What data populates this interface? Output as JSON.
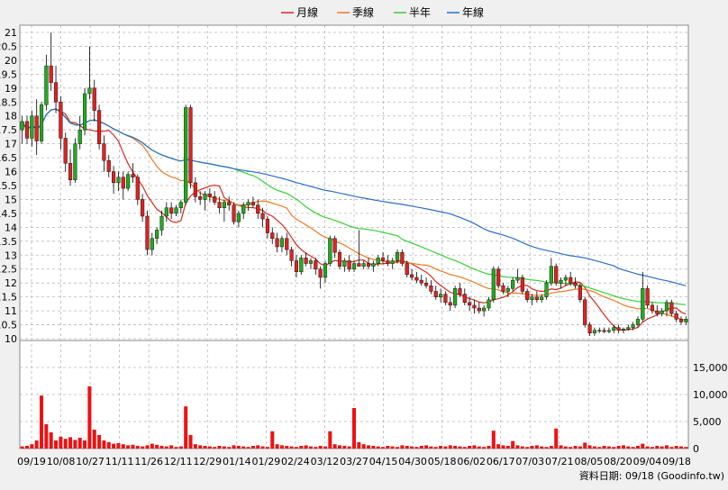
{
  "chart_data": {
    "type": "candlestick",
    "legend": [
      {
        "label": "月線",
        "color": "#d62a1e"
      },
      {
        "label": "季線",
        "color": "#ef7a24"
      },
      {
        "label": "半年",
        "color": "#36d036"
      },
      {
        "label": "年線",
        "color": "#2a6ecf"
      }
    ],
    "x_tick_labels": [
      "09/19",
      "10/08",
      "10/27",
      "11/11",
      "11/26",
      "12/11",
      "12/29",
      "01/14",
      "01/29",
      "02/24",
      "03/12",
      "03/27",
      "04/15",
      "04/30",
      "05/18",
      "06/02",
      "06/17",
      "07/03",
      "07/21",
      "08/05",
      "08/20",
      "09/04",
      "09/18"
    ],
    "price_axis": {
      "ticks": [
        "21",
        "20.5",
        "20",
        "19.5",
        "19",
        "18.5",
        "18",
        "17.5",
        "17",
        "16.5",
        "16",
        "15.5",
        "15",
        "14.5",
        "14",
        "13.5",
        "13",
        "12.5",
        "12",
        "11.5",
        "11",
        "10.5",
        "10"
      ],
      "ylim": [
        10,
        21
      ]
    },
    "volume_axis": {
      "ticks": [
        "15,000",
        "10,000",
        "5,000",
        "0"
      ],
      "ylim": [
        0,
        20000
      ]
    },
    "source_note": "資料日期: 09/18  (Goodinfo.tw)",
    "up_color": "#22aa22",
    "down_color": "#dd2222",
    "volume_color": "#ee1111",
    "candles": [
      {
        "o": 17.5,
        "h": 18.0,
        "l": 17.0,
        "c": 17.8
      },
      {
        "o": 17.8,
        "h": 18.0,
        "l": 17.0,
        "c": 17.2
      },
      {
        "o": 17.2,
        "h": 18.2,
        "l": 16.9,
        "c": 18.0
      },
      {
        "o": 18.0,
        "h": 18.6,
        "l": 16.6,
        "c": 17.1
      },
      {
        "o": 17.1,
        "h": 18.5,
        "l": 17.0,
        "c": 18.4
      },
      {
        "o": 18.4,
        "h": 20.2,
        "l": 18.2,
        "c": 19.8
      },
      {
        "o": 19.8,
        "h": 21.0,
        "l": 18.9,
        "c": 19.2
      },
      {
        "o": 19.2,
        "h": 19.8,
        "l": 18.1,
        "c": 18.5
      },
      {
        "o": 18.5,
        "h": 18.7,
        "l": 16.8,
        "c": 17.2
      },
      {
        "o": 17.2,
        "h": 17.4,
        "l": 16.0,
        "c": 16.3
      },
      {
        "o": 16.3,
        "h": 16.8,
        "l": 15.5,
        "c": 15.7
      },
      {
        "o": 15.7,
        "h": 17.2,
        "l": 15.6,
        "c": 17.0
      },
      {
        "o": 17.0,
        "h": 18.0,
        "l": 16.8,
        "c": 17.5
      },
      {
        "o": 17.5,
        "h": 19.0,
        "l": 17.3,
        "c": 18.8
      },
      {
        "o": 18.8,
        "h": 20.5,
        "l": 18.6,
        "c": 19.0
      },
      {
        "o": 19.0,
        "h": 19.3,
        "l": 17.8,
        "c": 18.2
      },
      {
        "o": 18.2,
        "h": 18.4,
        "l": 16.8,
        "c": 17.0
      },
      {
        "o": 17.0,
        "h": 17.3,
        "l": 16.0,
        "c": 16.4
      },
      {
        "o": 16.4,
        "h": 16.6,
        "l": 15.8,
        "c": 16.0
      },
      {
        "o": 16.0,
        "h": 16.2,
        "l": 15.2,
        "c": 15.6
      },
      {
        "o": 15.6,
        "h": 16.0,
        "l": 15.3,
        "c": 15.8
      },
      {
        "o": 15.8,
        "h": 16.0,
        "l": 15.0,
        "c": 15.4
      },
      {
        "o": 15.4,
        "h": 16.0,
        "l": 15.3,
        "c": 15.9
      },
      {
        "o": 15.9,
        "h": 16.3,
        "l": 15.6,
        "c": 15.8
      },
      {
        "o": 15.8,
        "h": 15.9,
        "l": 14.8,
        "c": 15.0
      },
      {
        "o": 15.0,
        "h": 15.2,
        "l": 14.2,
        "c": 14.4
      },
      {
        "o": 14.4,
        "h": 14.6,
        "l": 13.0,
        "c": 13.2
      },
      {
        "o": 13.2,
        "h": 13.8,
        "l": 13.0,
        "c": 13.6
      },
      {
        "o": 13.6,
        "h": 14.0,
        "l": 13.4,
        "c": 13.9
      },
      {
        "o": 13.9,
        "h": 14.6,
        "l": 13.7,
        "c": 14.4
      },
      {
        "o": 14.4,
        "h": 14.9,
        "l": 14.2,
        "c": 14.7
      },
      {
        "o": 14.7,
        "h": 14.9,
        "l": 14.3,
        "c": 14.5
      },
      {
        "o": 14.5,
        "h": 14.8,
        "l": 14.4,
        "c": 14.7
      },
      {
        "o": 14.7,
        "h": 15.0,
        "l": 14.5,
        "c": 14.9
      },
      {
        "o": 14.9,
        "h": 18.4,
        "l": 14.8,
        "c": 18.3
      },
      {
        "o": 18.3,
        "h": 18.4,
        "l": 15.4,
        "c": 15.6
      },
      {
        "o": 15.6,
        "h": 15.8,
        "l": 14.9,
        "c": 15.1
      },
      {
        "o": 15.1,
        "h": 15.3,
        "l": 14.8,
        "c": 15.0
      },
      {
        "o": 15.0,
        "h": 15.3,
        "l": 14.6,
        "c": 15.2
      },
      {
        "o": 15.2,
        "h": 15.4,
        "l": 14.9,
        "c": 15.1
      },
      {
        "o": 15.1,
        "h": 15.3,
        "l": 14.8,
        "c": 14.9
      },
      {
        "o": 14.9,
        "h": 15.1,
        "l": 14.5,
        "c": 14.7
      },
      {
        "o": 14.7,
        "h": 15.0,
        "l": 14.2,
        "c": 14.9
      },
      {
        "o": 14.9,
        "h": 15.1,
        "l": 14.6,
        "c": 14.8
      },
      {
        "o": 14.8,
        "h": 14.9,
        "l": 14.1,
        "c": 14.2
      },
      {
        "o": 14.2,
        "h": 14.6,
        "l": 14.0,
        "c": 14.5
      },
      {
        "o": 14.5,
        "h": 14.9,
        "l": 14.3,
        "c": 14.8
      },
      {
        "o": 14.8,
        "h": 15.0,
        "l": 14.6,
        "c": 14.9
      },
      {
        "o": 14.9,
        "h": 15.1,
        "l": 14.7,
        "c": 14.8
      },
      {
        "o": 14.8,
        "h": 15.0,
        "l": 14.3,
        "c": 14.5
      },
      {
        "o": 14.5,
        "h": 14.7,
        "l": 14.0,
        "c": 14.3
      },
      {
        "o": 14.3,
        "h": 14.4,
        "l": 13.6,
        "c": 13.8
      },
      {
        "o": 13.8,
        "h": 14.0,
        "l": 13.4,
        "c": 13.6
      },
      {
        "o": 13.6,
        "h": 13.8,
        "l": 13.1,
        "c": 13.3
      },
      {
        "o": 13.3,
        "h": 13.7,
        "l": 13.1,
        "c": 13.6
      },
      {
        "o": 13.6,
        "h": 13.8,
        "l": 13.0,
        "c": 13.2
      },
      {
        "o": 13.2,
        "h": 13.3,
        "l": 12.6,
        "c": 12.8
      },
      {
        "o": 12.8,
        "h": 13.0,
        "l": 12.2,
        "c": 12.4
      },
      {
        "o": 12.4,
        "h": 13.0,
        "l": 12.3,
        "c": 12.9
      },
      {
        "o": 12.9,
        "h": 13.1,
        "l": 12.6,
        "c": 12.7
      },
      {
        "o": 12.7,
        "h": 12.9,
        "l": 12.5,
        "c": 12.8
      },
      {
        "o": 12.8,
        "h": 12.9,
        "l": 12.3,
        "c": 12.5
      },
      {
        "o": 12.5,
        "h": 12.6,
        "l": 11.8,
        "c": 12.2
      },
      {
        "o": 12.2,
        "h": 12.8,
        "l": 12.0,
        "c": 12.7
      },
      {
        "o": 12.7,
        "h": 13.7,
        "l": 12.6,
        "c": 13.6
      },
      {
        "o": 13.6,
        "h": 13.7,
        "l": 12.9,
        "c": 13.1
      },
      {
        "o": 13.1,
        "h": 13.2,
        "l": 12.5,
        "c": 12.6
      },
      {
        "o": 12.6,
        "h": 12.9,
        "l": 12.4,
        "c": 12.8
      },
      {
        "o": 12.8,
        "h": 13.0,
        "l": 12.4,
        "c": 12.5
      },
      {
        "o": 12.5,
        "h": 12.8,
        "l": 12.4,
        "c": 12.7
      },
      {
        "o": 12.7,
        "h": 13.9,
        "l": 12.6,
        "c": 12.6
      },
      {
        "o": 12.6,
        "h": 12.8,
        "l": 12.5,
        "c": 12.7
      },
      {
        "o": 12.7,
        "h": 12.9,
        "l": 12.5,
        "c": 12.6
      },
      {
        "o": 12.6,
        "h": 12.8,
        "l": 12.4,
        "c": 12.7
      },
      {
        "o": 12.7,
        "h": 13.0,
        "l": 12.6,
        "c": 12.9
      },
      {
        "o": 12.9,
        "h": 13.1,
        "l": 12.7,
        "c": 12.8
      },
      {
        "o": 12.8,
        "h": 13.0,
        "l": 12.6,
        "c": 12.7
      },
      {
        "o": 12.7,
        "h": 12.9,
        "l": 12.5,
        "c": 12.8
      },
      {
        "o": 12.8,
        "h": 13.2,
        "l": 12.7,
        "c": 13.1
      },
      {
        "o": 13.1,
        "h": 13.2,
        "l": 12.6,
        "c": 12.7
      },
      {
        "o": 12.7,
        "h": 12.8,
        "l": 12.2,
        "c": 12.3
      },
      {
        "o": 12.3,
        "h": 12.5,
        "l": 12.1,
        "c": 12.2
      },
      {
        "o": 12.2,
        "h": 12.4,
        "l": 12.0,
        "c": 12.1
      },
      {
        "o": 12.1,
        "h": 12.3,
        "l": 11.9,
        "c": 12.0
      },
      {
        "o": 12.0,
        "h": 12.2,
        "l": 11.8,
        "c": 11.9
      },
      {
        "o": 11.9,
        "h": 12.1,
        "l": 11.6,
        "c": 11.7
      },
      {
        "o": 11.7,
        "h": 11.9,
        "l": 11.4,
        "c": 11.5
      },
      {
        "o": 11.5,
        "h": 11.8,
        "l": 11.3,
        "c": 11.6
      },
      {
        "o": 11.6,
        "h": 11.7,
        "l": 11.2,
        "c": 11.3
      },
      {
        "o": 11.3,
        "h": 11.5,
        "l": 11.0,
        "c": 11.2
      },
      {
        "o": 11.2,
        "h": 11.9,
        "l": 11.1,
        "c": 11.8
      },
      {
        "o": 11.8,
        "h": 12.0,
        "l": 11.5,
        "c": 11.6
      },
      {
        "o": 11.6,
        "h": 11.8,
        "l": 11.2,
        "c": 11.3
      },
      {
        "o": 11.3,
        "h": 11.5,
        "l": 11.0,
        "c": 11.2
      },
      {
        "o": 11.2,
        "h": 11.4,
        "l": 10.9,
        "c": 11.1
      },
      {
        "o": 11.1,
        "h": 11.3,
        "l": 10.9,
        "c": 11.0
      },
      {
        "o": 11.0,
        "h": 11.2,
        "l": 10.8,
        "c": 11.1
      },
      {
        "o": 11.1,
        "h": 11.5,
        "l": 11.0,
        "c": 11.4
      },
      {
        "o": 11.4,
        "h": 12.6,
        "l": 11.3,
        "c": 12.5
      },
      {
        "o": 12.5,
        "h": 12.6,
        "l": 11.8,
        "c": 11.9
      },
      {
        "o": 11.9,
        "h": 12.0,
        "l": 11.6,
        "c": 11.7
      },
      {
        "o": 11.7,
        "h": 11.9,
        "l": 11.5,
        "c": 11.8
      },
      {
        "o": 11.8,
        "h": 12.2,
        "l": 11.7,
        "c": 12.1
      },
      {
        "o": 12.1,
        "h": 12.5,
        "l": 12.0,
        "c": 12.2
      },
      {
        "o": 12.2,
        "h": 12.3,
        "l": 11.6,
        "c": 11.7
      },
      {
        "o": 11.7,
        "h": 11.8,
        "l": 11.3,
        "c": 11.4
      },
      {
        "o": 11.4,
        "h": 11.6,
        "l": 11.2,
        "c": 11.5
      },
      {
        "o": 11.5,
        "h": 11.7,
        "l": 11.3,
        "c": 11.4
      },
      {
        "o": 11.4,
        "h": 11.6,
        "l": 11.3,
        "c": 11.5
      },
      {
        "o": 11.5,
        "h": 12.1,
        "l": 11.4,
        "c": 12.0
      },
      {
        "o": 12.0,
        "h": 12.9,
        "l": 11.9,
        "c": 12.6
      },
      {
        "o": 12.6,
        "h": 12.7,
        "l": 11.9,
        "c": 12.0
      },
      {
        "o": 12.0,
        "h": 12.2,
        "l": 11.8,
        "c": 12.1
      },
      {
        "o": 12.1,
        "h": 12.3,
        "l": 11.9,
        "c": 12.2
      },
      {
        "o": 12.2,
        "h": 12.4,
        "l": 11.9,
        "c": 12.0
      },
      {
        "o": 12.0,
        "h": 12.2,
        "l": 11.8,
        "c": 11.9
      },
      {
        "o": 11.9,
        "h": 12.0,
        "l": 11.3,
        "c": 11.4
      },
      {
        "o": 11.4,
        "h": 11.5,
        "l": 10.4,
        "c": 10.5
      },
      {
        "o": 10.5,
        "h": 10.6,
        "l": 10.1,
        "c": 10.2
      },
      {
        "o": 10.2,
        "h": 10.4,
        "l": 10.1,
        "c": 10.3
      },
      {
        "o": 10.3,
        "h": 10.4,
        "l": 10.2,
        "c": 10.3
      },
      {
        "o": 10.3,
        "h": 10.4,
        "l": 10.2,
        "c": 10.25
      },
      {
        "o": 10.25,
        "h": 10.4,
        "l": 10.2,
        "c": 10.3
      },
      {
        "o": 10.3,
        "h": 10.5,
        "l": 10.2,
        "c": 10.4
      },
      {
        "o": 10.4,
        "h": 10.5,
        "l": 10.2,
        "c": 10.3
      },
      {
        "o": 10.3,
        "h": 10.4,
        "l": 10.2,
        "c": 10.35
      },
      {
        "o": 10.35,
        "h": 10.5,
        "l": 10.3,
        "c": 10.4
      },
      {
        "o": 10.4,
        "h": 10.6,
        "l": 10.3,
        "c": 10.5
      },
      {
        "o": 10.5,
        "h": 10.8,
        "l": 10.4,
        "c": 10.7
      },
      {
        "o": 10.7,
        "h": 12.4,
        "l": 10.6,
        "c": 11.8
      },
      {
        "o": 11.8,
        "h": 11.9,
        "l": 11.1,
        "c": 11.2
      },
      {
        "o": 11.2,
        "h": 11.3,
        "l": 10.9,
        "c": 11.0
      },
      {
        "o": 11.0,
        "h": 11.2,
        "l": 10.8,
        "c": 10.9
      },
      {
        "o": 10.9,
        "h": 11.1,
        "l": 10.8,
        "c": 11.0
      },
      {
        "o": 11.0,
        "h": 11.4,
        "l": 10.8,
        "c": 11.3
      },
      {
        "o": 11.3,
        "h": 11.4,
        "l": 10.8,
        "c": 10.9
      },
      {
        "o": 10.9,
        "h": 11.0,
        "l": 10.6,
        "c": 10.7
      },
      {
        "o": 10.7,
        "h": 10.8,
        "l": 10.5,
        "c": 10.6
      },
      {
        "o": 10.6,
        "h": 10.8,
        "l": 10.5,
        "c": 10.7
      }
    ],
    "volumes": [
      400,
      500,
      800,
      1500,
      9800,
      4500,
      3000,
      1500,
      2200,
      1800,
      2100,
      1600,
      2000,
      1500,
      11500,
      3500,
      2500,
      1500,
      1200,
      900,
      1000,
      800,
      600,
      700,
      500,
      400,
      600,
      900,
      700,
      500,
      400,
      600,
      300,
      400,
      7800,
      2500,
      800,
      600,
      500,
      400,
      300,
      500,
      400,
      300,
      600,
      500,
      400,
      300,
      500,
      600,
      400,
      300,
      3200,
      800,
      600,
      500,
      400,
      300,
      500,
      600,
      400,
      300,
      500,
      400,
      3200,
      800,
      600,
      500,
      400,
      7500,
      1200,
      800,
      600,
      500,
      400,
      300,
      500,
      400,
      300,
      600,
      500,
      400,
      300,
      500,
      600,
      400,
      300,
      500,
      400,
      600,
      500,
      400,
      300,
      500,
      600,
      400,
      300,
      500,
      3300,
      800,
      600,
      500,
      1400,
      600,
      400,
      300,
      500,
      600,
      400,
      300,
      500,
      3700,
      600,
      400,
      300,
      500,
      400,
      1100,
      600,
      400,
      300,
      500,
      400,
      300,
      500,
      600,
      400,
      300,
      500,
      900,
      400,
      300,
      500,
      400,
      600,
      300,
      500,
      400,
      300
    ]
  }
}
